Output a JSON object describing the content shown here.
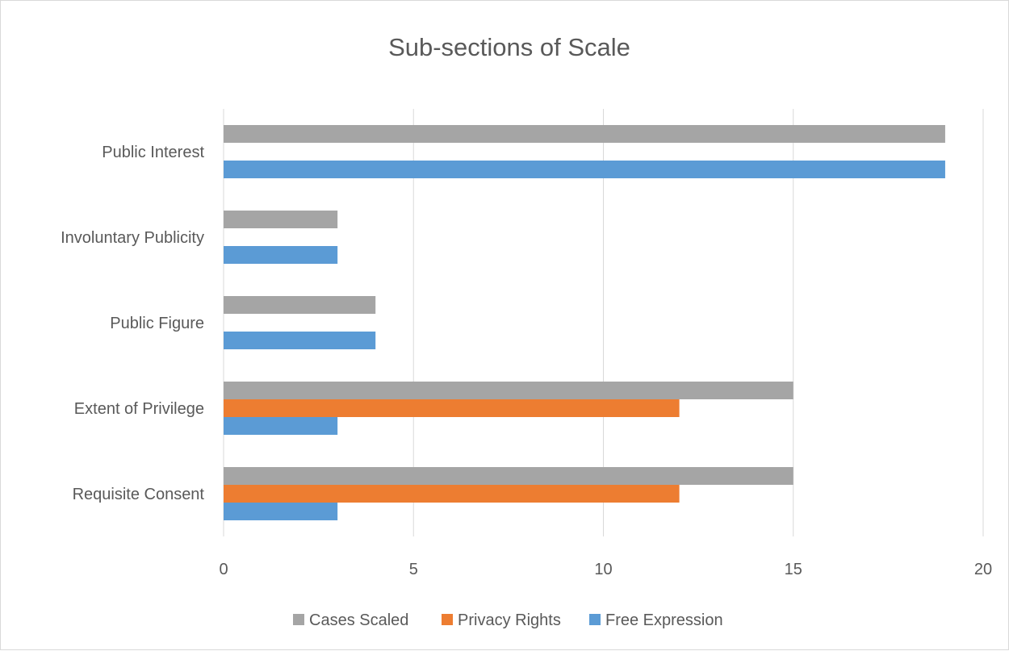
{
  "chart_data": {
    "type": "bar",
    "orientation": "horizontal",
    "title": "Sub-sections of Scale",
    "xlabel": "",
    "ylabel": "",
    "xlim": [
      0,
      20
    ],
    "x_ticks": [
      0,
      5,
      10,
      15,
      20
    ],
    "grid": "vertical",
    "legend_position": "bottom",
    "categories": [
      "Public Interest",
      "Involuntary Publicity",
      "Public Figure",
      "Extent of Privilege",
      "Requisite Consent"
    ],
    "series": [
      {
        "name": "Cases Scaled",
        "color": "#a5a5a5",
        "values": [
          19,
          3,
          4,
          15,
          15
        ]
      },
      {
        "name": "Privacy Rights",
        "color": "#ed7d31",
        "values": [
          0,
          0,
          0,
          12,
          12
        ]
      },
      {
        "name": "Free Expression",
        "color": "#5b9bd5",
        "values": [
          19,
          3,
          4,
          3,
          3
        ]
      }
    ]
  }
}
